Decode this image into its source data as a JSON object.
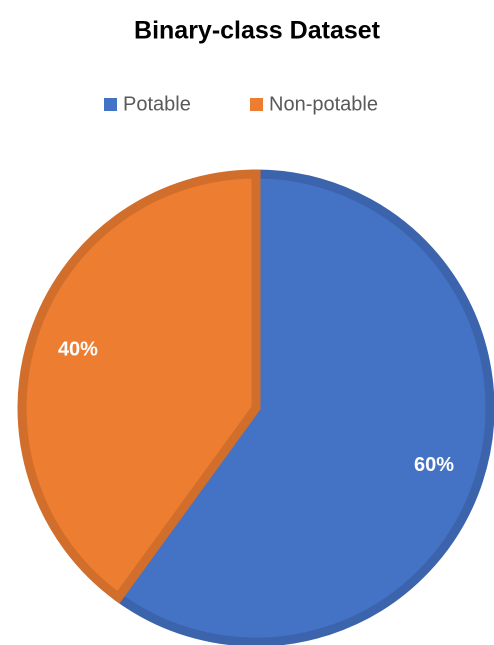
{
  "chart_data": {
    "type": "pie",
    "title": "Binary-class Dataset",
    "categories": [
      "Potable",
      "Non-potable"
    ],
    "values": [
      60,
      40
    ],
    "value_labels": [
      "60%",
      "40%"
    ],
    "colors": [
      "#4472c4",
      "#ed7d31"
    ],
    "legend": "top"
  }
}
